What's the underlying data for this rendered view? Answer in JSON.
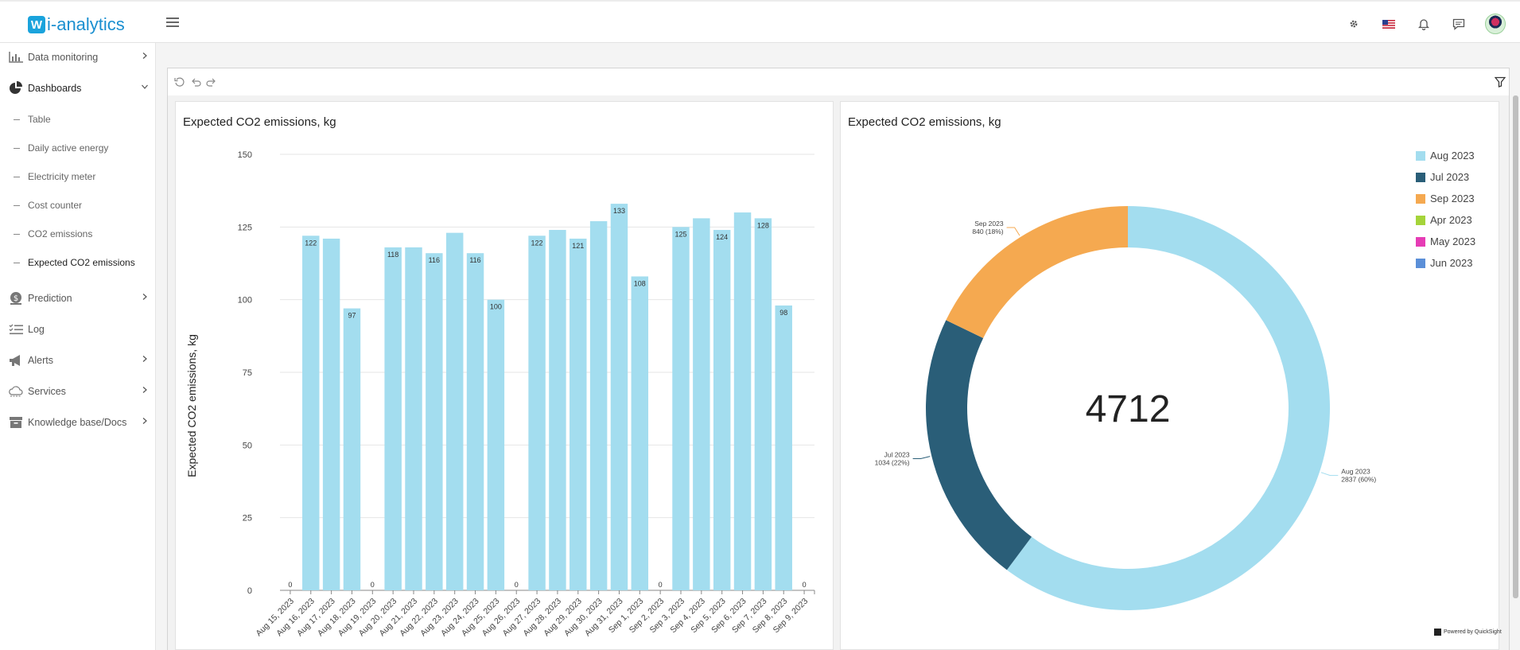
{
  "app": {
    "logo_letter": "W",
    "logo_text": "i-analytics"
  },
  "topbar": {
    "icons": [
      "gear-icon",
      "flag-icon",
      "bell-icon",
      "chat-icon",
      "avatar"
    ]
  },
  "sidebar": {
    "items": [
      {
        "label": "Data monitoring",
        "icon": "bar-chart-icon",
        "chevron": "right"
      },
      {
        "label": "Dashboards",
        "icon": "pie-chart-icon",
        "chevron": "down"
      },
      {
        "label": "Prediction",
        "icon": "dollar-icon",
        "chevron": "right"
      },
      {
        "label": "Log",
        "icon": "list-icon",
        "chevron": ""
      },
      {
        "label": "Alerts",
        "icon": "megaphone-icon",
        "chevron": "right"
      },
      {
        "label": "Services",
        "icon": "cloud-icon",
        "chevron": "right"
      },
      {
        "label": "Knowledge base/Docs",
        "icon": "archive-icon",
        "chevron": "right"
      }
    ],
    "sub_items": [
      "Table",
      "Daily active energy",
      "Electricity meter",
      "Cost counter",
      "CO2 emissions",
      "Expected CO2 emissions"
    ],
    "active_sub": "Expected CO2 emissions"
  },
  "toolbar": {
    "icons": [
      "reset-icon",
      "undo-icon",
      "redo-icon",
      "filter-icon"
    ]
  },
  "panels": {
    "bar_title": "Expected CO2 emissions, kg",
    "donut_title": "Expected CO2 emissions, kg"
  },
  "footer": {
    "powered": "Powered by QuickSight"
  },
  "colors": {
    "bar": "#a3ddef",
    "aug": "#a3ddef",
    "jul": "#2a5e78",
    "sep": "#f5a950",
    "apr": "#a5d43a",
    "may": "#e63cb5",
    "jun": "#5b8fd8"
  },
  "chart_data": [
    {
      "type": "bar",
      "title": "Expected CO2 emissions, kg",
      "ylabel": "Expected CO2 emissions, kg",
      "xlabel": "",
      "ylim": [
        0,
        150
      ],
      "yticks": [
        0,
        25,
        50,
        75,
        100,
        125,
        150
      ],
      "grid": true,
      "categories": [
        "Aug 15, 2023",
        "Aug 16, 2023",
        "Aug 17, 2023",
        "Aug 18, 2023",
        "Aug 19, 2023",
        "Aug 20, 2023",
        "Aug 21, 2023",
        "Aug 22, 2023",
        "Aug 23, 2023",
        "Aug 24, 2023",
        "Aug 25, 2023",
        "Aug 26, 2023",
        "Aug 27, 2023",
        "Aug 28, 2023",
        "Aug 29, 2023",
        "Aug 30, 2023",
        "Aug 31, 2023",
        "Sep 1, 2023",
        "Sep 2, 2023",
        "Sep 3, 2023",
        "Sep 4, 2023",
        "Sep 5, 2023",
        "Sep 6, 2023",
        "Sep 7, 2023",
        "Sep 8, 2023",
        "Sep 9, 2023"
      ],
      "values": [
        0,
        122,
        121,
        97,
        0,
        118,
        118,
        116,
        123,
        116,
        100,
        0,
        122,
        124,
        121,
        127,
        133,
        108,
        0,
        125,
        128,
        124,
        130,
        128,
        98,
        0
      ],
      "data_labels": [
        "0",
        "122",
        "",
        "97",
        "0",
        "118",
        "",
        "116",
        "",
        "116",
        "100",
        "0",
        "122",
        "",
        "121",
        "",
        "133",
        "108",
        "0",
        "125",
        "",
        "124",
        "",
        "128",
        "98",
        "0"
      ]
    },
    {
      "type": "pie",
      "variant": "donut",
      "title": "Expected CO2 emissions, kg",
      "center_label": "4712",
      "slices": [
        {
          "name": "Aug 2023",
          "value": 2837,
          "label": "2837 (60%)"
        },
        {
          "name": "Jul 2023",
          "value": 1034,
          "label": "1034 (22%)"
        },
        {
          "name": "Sep 2023",
          "value": 840,
          "label": "840 (18%)"
        }
      ],
      "legend": [
        "Aug 2023",
        "Jul 2023",
        "Sep 2023",
        "Apr 2023",
        "May 2023",
        "Jun 2023"
      ],
      "legend_position": "top-right"
    }
  ]
}
